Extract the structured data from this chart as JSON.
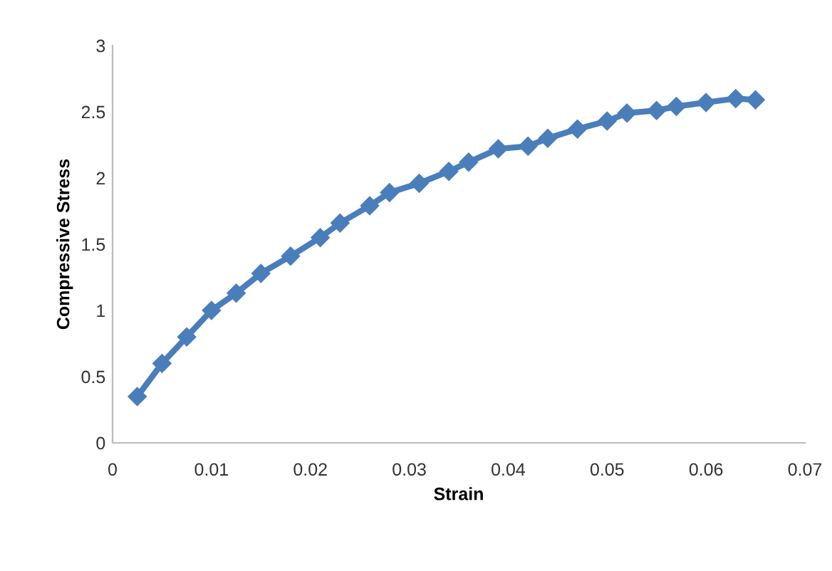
{
  "chart_data": {
    "type": "line",
    "xlabel": "Strain",
    "ylabel": "Compressive Stress",
    "x": [
      0.0025,
      0.005,
      0.0075,
      0.01,
      0.0125,
      0.015,
      0.018,
      0.021,
      0.023,
      0.026,
      0.028,
      0.031,
      0.034,
      0.036,
      0.039,
      0.042,
      0.044,
      0.047,
      0.05,
      0.052,
      0.055,
      0.057,
      0.06,
      0.063,
      0.065
    ],
    "series": [
      {
        "color": "#4a7ebb",
        "values": [
          0.35,
          0.6,
          0.8,
          1.0,
          1.13,
          1.28,
          1.41,
          1.55,
          1.66,
          1.79,
          1.89,
          1.96,
          2.05,
          2.12,
          2.22,
          2.24,
          2.3,
          2.37,
          2.43,
          2.49,
          2.51,
          2.54,
          2.57,
          2.6,
          2.59
        ]
      }
    ],
    "xlim": [
      0,
      0.07
    ],
    "xticks": [
      0,
      0.01,
      0.02,
      0.03,
      0.04,
      0.05,
      0.06,
      0.07
    ],
    "ylim": [
      0,
      3
    ],
    "yticks": [
      0,
      0.5,
      1,
      1.5,
      2,
      2.5,
      3
    ],
    "marker": "diamond",
    "line_style": "solid",
    "grid": false,
    "legend": false
  }
}
